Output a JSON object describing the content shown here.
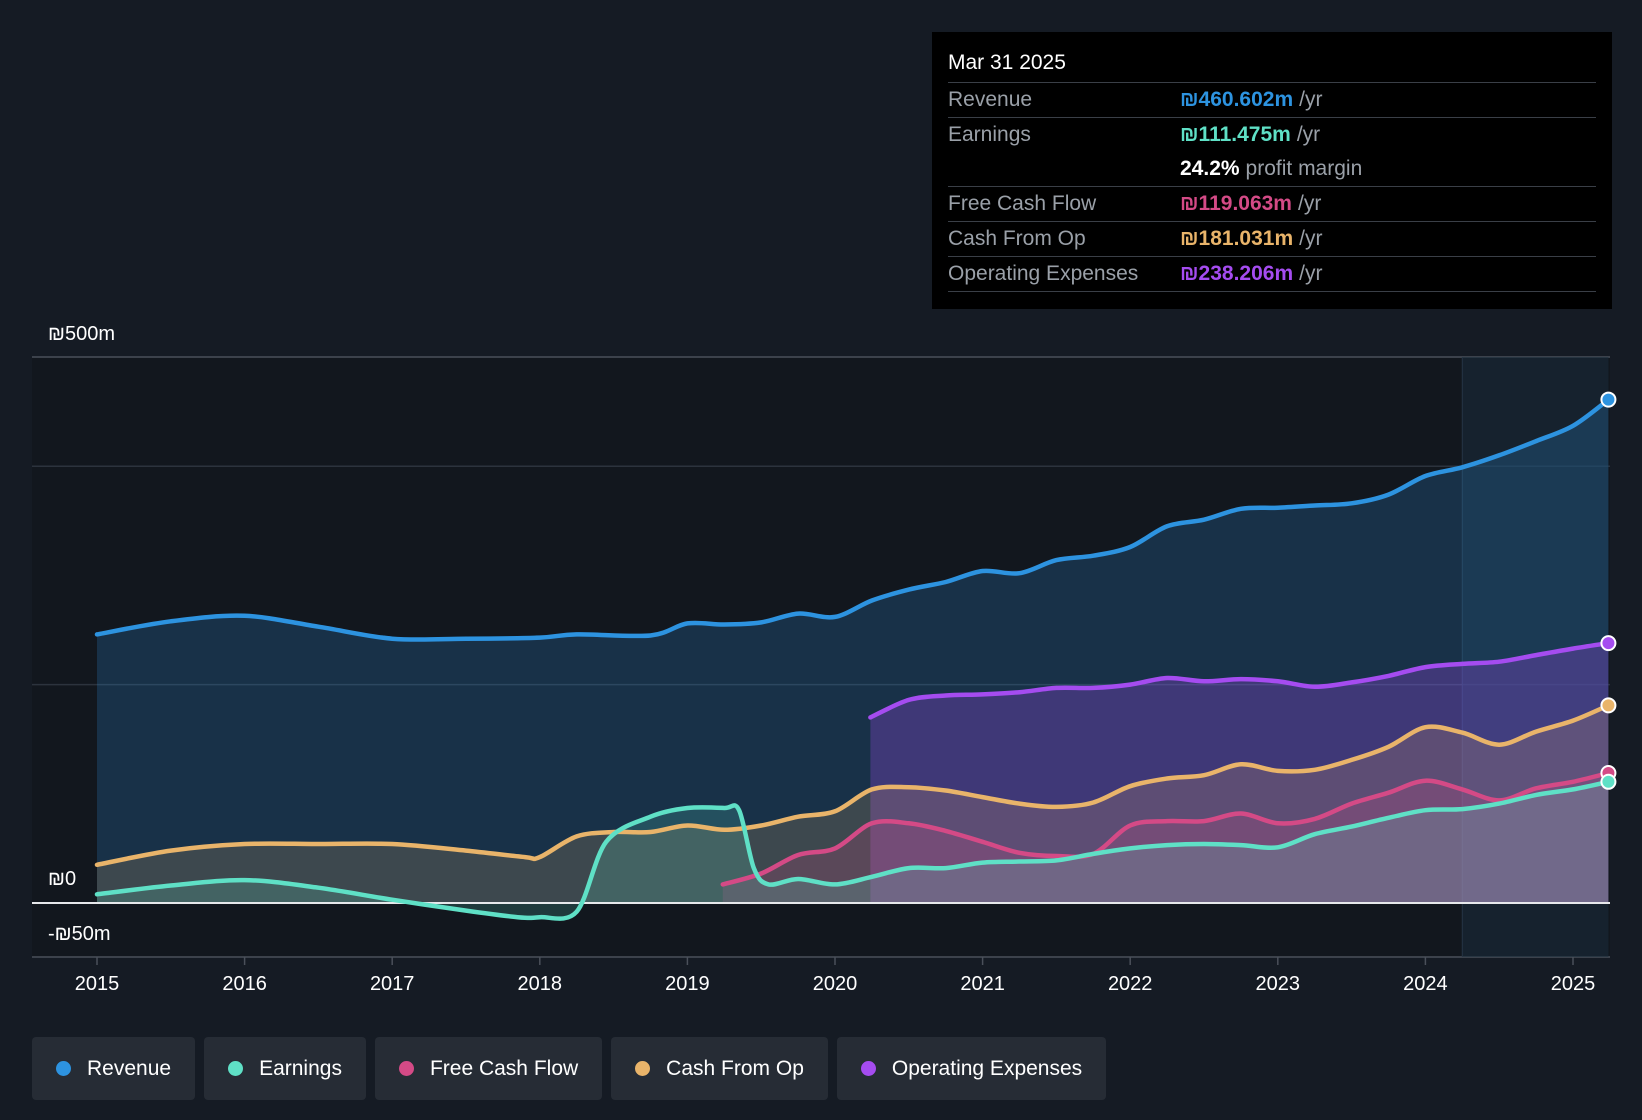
{
  "colors": {
    "revenue": "#2d93e0",
    "earnings": "#5fe0c6",
    "fcf": "#d44a86",
    "cfo": "#e9b46a",
    "opex": "#a54cf0"
  },
  "tooltip": {
    "date": "Mar 31 2025",
    "rows": [
      {
        "label": "Revenue",
        "value": "₪460.602m",
        "unit": "/yr"
      },
      {
        "label": "Earnings",
        "value": "₪111.475m",
        "unit": "/yr"
      },
      {
        "label": "Free Cash Flow",
        "value": "₪119.063m",
        "unit": "/yr"
      },
      {
        "label": "Cash From Op",
        "value": "₪181.031m",
        "unit": "/yr"
      },
      {
        "label": "Operating Expenses",
        "value": "₪238.206m",
        "unit": "/yr"
      }
    ],
    "margin_value": "24.2%",
    "margin_label": "profit margin"
  },
  "legend": {
    "items": [
      "Revenue",
      "Earnings",
      "Free Cash Flow",
      "Cash From Op",
      "Operating Expenses"
    ]
  },
  "chart_data": {
    "type": "area",
    "title": "",
    "xlabel": "",
    "ylabel": "",
    "y_tick_labels": [
      "₪500m",
      "₪0",
      "-₪50m"
    ],
    "x_tick_labels": [
      "2015",
      "2016",
      "2017",
      "2018",
      "2019",
      "2020",
      "2021",
      "2022",
      "2023",
      "2024",
      "2025"
    ],
    "ylim": [
      -50,
      500
    ],
    "xlim": [
      2014.57,
      2025.24
    ],
    "highlight_range": [
      2024.25,
      2025.24
    ],
    "series": [
      {
        "name": "Revenue",
        "key": "revenue",
        "points": [
          [
            2015.0,
            246
          ],
          [
            2015.5,
            258
          ],
          [
            2016.0,
            263
          ],
          [
            2016.5,
            253
          ],
          [
            2017.0,
            242
          ],
          [
            2017.5,
            242
          ],
          [
            2018.0,
            243
          ],
          [
            2018.25,
            246
          ],
          [
            2018.75,
            245
          ],
          [
            2019.0,
            256
          ],
          [
            2019.25,
            255
          ],
          [
            2019.5,
            257
          ],
          [
            2019.75,
            265
          ],
          [
            2020.0,
            262
          ],
          [
            2020.25,
            277
          ],
          [
            2020.5,
            287
          ],
          [
            2020.75,
            294
          ],
          [
            2021.0,
            304
          ],
          [
            2021.25,
            302
          ],
          [
            2021.5,
            314
          ],
          [
            2021.75,
            318
          ],
          [
            2022.0,
            326
          ],
          [
            2022.25,
            345
          ],
          [
            2022.5,
            351
          ],
          [
            2022.75,
            361
          ],
          [
            2023.0,
            362
          ],
          [
            2023.25,
            364
          ],
          [
            2023.5,
            366
          ],
          [
            2023.75,
            374
          ],
          [
            2024.0,
            391
          ],
          [
            2024.25,
            399
          ],
          [
            2024.5,
            410
          ],
          [
            2024.75,
            423
          ],
          [
            2025.0,
            437
          ],
          [
            2025.24,
            461
          ]
        ]
      },
      {
        "name": "Operating Expenses",
        "key": "opex",
        "points": [
          [
            2020.24,
            170
          ],
          [
            2020.5,
            186
          ],
          [
            2020.75,
            190
          ],
          [
            2021.0,
            191
          ],
          [
            2021.25,
            193
          ],
          [
            2021.5,
            197
          ],
          [
            2021.75,
            197
          ],
          [
            2022.0,
            200
          ],
          [
            2022.25,
            206
          ],
          [
            2022.5,
            203
          ],
          [
            2022.75,
            205
          ],
          [
            2023.0,
            203
          ],
          [
            2023.25,
            198
          ],
          [
            2023.5,
            202
          ],
          [
            2023.75,
            208
          ],
          [
            2024.0,
            216
          ],
          [
            2024.25,
            219
          ],
          [
            2024.5,
            221
          ],
          [
            2024.75,
            227
          ],
          [
            2025.0,
            233
          ],
          [
            2025.24,
            238
          ]
        ]
      },
      {
        "name": "Cash From Op",
        "key": "cfo",
        "points": [
          [
            2015.0,
            35
          ],
          [
            2015.5,
            48
          ],
          [
            2016.0,
            54
          ],
          [
            2016.5,
            54
          ],
          [
            2017.0,
            54
          ],
          [
            2017.5,
            48
          ],
          [
            2017.9,
            42
          ],
          [
            2018.0,
            42
          ],
          [
            2018.25,
            61
          ],
          [
            2018.5,
            65
          ],
          [
            2018.75,
            65
          ],
          [
            2019.0,
            71
          ],
          [
            2019.25,
            67
          ],
          [
            2019.5,
            71
          ],
          [
            2019.75,
            79
          ],
          [
            2020.0,
            84
          ],
          [
            2020.25,
            104
          ],
          [
            2020.5,
            106
          ],
          [
            2020.75,
            103
          ],
          [
            2021.0,
            97
          ],
          [
            2021.25,
            91
          ],
          [
            2021.5,
            88
          ],
          [
            2021.75,
            92
          ],
          [
            2022.0,
            107
          ],
          [
            2022.25,
            114
          ],
          [
            2022.5,
            117
          ],
          [
            2022.75,
            127
          ],
          [
            2023.0,
            121
          ],
          [
            2023.25,
            122
          ],
          [
            2023.5,
            131
          ],
          [
            2023.75,
            143
          ],
          [
            2024.0,
            161
          ],
          [
            2024.25,
            156
          ],
          [
            2024.5,
            145
          ],
          [
            2024.75,
            157
          ],
          [
            2025.0,
            167
          ],
          [
            2025.24,
            181
          ]
        ]
      },
      {
        "name": "Free Cash Flow",
        "key": "fcf",
        "points": [
          [
            2019.24,
            17
          ],
          [
            2019.5,
            27
          ],
          [
            2019.75,
            44
          ],
          [
            2020.0,
            50
          ],
          [
            2020.25,
            73
          ],
          [
            2020.5,
            73
          ],
          [
            2020.75,
            66
          ],
          [
            2021.0,
            56
          ],
          [
            2021.25,
            46
          ],
          [
            2021.5,
            43
          ],
          [
            2021.75,
            45
          ],
          [
            2022.0,
            71
          ],
          [
            2022.25,
            75
          ],
          [
            2022.5,
            75
          ],
          [
            2022.75,
            82
          ],
          [
            2023.0,
            73
          ],
          [
            2023.25,
            77
          ],
          [
            2023.5,
            91
          ],
          [
            2023.75,
            101
          ],
          [
            2024.0,
            112
          ],
          [
            2024.25,
            104
          ],
          [
            2024.5,
            94
          ],
          [
            2024.75,
            105
          ],
          [
            2025.0,
            111
          ],
          [
            2025.24,
            119
          ]
        ]
      },
      {
        "name": "Earnings",
        "key": "earnings",
        "points": [
          [
            2015.0,
            8
          ],
          [
            2015.5,
            16
          ],
          [
            2016.0,
            21
          ],
          [
            2016.5,
            14
          ],
          [
            2017.0,
            3
          ],
          [
            2017.5,
            -7
          ],
          [
            2017.85,
            -13
          ],
          [
            2018.0,
            -13
          ],
          [
            2018.25,
            -8
          ],
          [
            2018.45,
            56
          ],
          [
            2018.75,
            79
          ],
          [
            2019.0,
            87
          ],
          [
            2019.25,
            87
          ],
          [
            2019.35,
            85
          ],
          [
            2019.45,
            32
          ],
          [
            2019.55,
            17
          ],
          [
            2019.75,
            22
          ],
          [
            2020.0,
            17
          ],
          [
            2020.25,
            24
          ],
          [
            2020.5,
            32
          ],
          [
            2020.75,
            32
          ],
          [
            2021.0,
            37
          ],
          [
            2021.25,
            38
          ],
          [
            2021.5,
            39
          ],
          [
            2021.75,
            45
          ],
          [
            2022.0,
            50
          ],
          [
            2022.25,
            53
          ],
          [
            2022.5,
            54
          ],
          [
            2022.75,
            53
          ],
          [
            2023.0,
            51
          ],
          [
            2023.25,
            63
          ],
          [
            2023.5,
            70
          ],
          [
            2023.75,
            78
          ],
          [
            2024.0,
            85
          ],
          [
            2024.25,
            86
          ],
          [
            2024.5,
            91
          ],
          [
            2024.75,
            99
          ],
          [
            2025.0,
            104
          ],
          [
            2025.24,
            111
          ]
        ]
      }
    ]
  }
}
